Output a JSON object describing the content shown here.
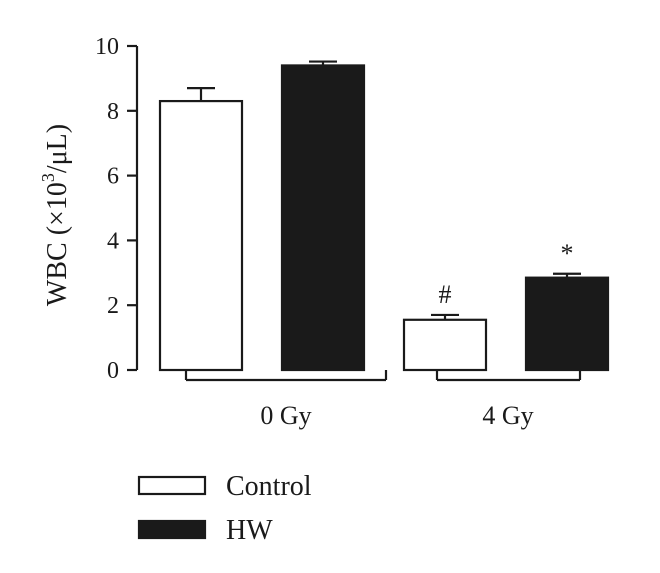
{
  "chart_data": {
    "type": "bar",
    "categories": [
      "0 Gy",
      "4 Gy"
    ],
    "series": [
      {
        "name": "Control",
        "values": [
          8.3,
          1.55
        ],
        "errors": [
          0.4,
          0.15
        ],
        "color": "#ffffff"
      },
      {
        "name": "HW",
        "values": [
          9.4,
          2.85
        ],
        "errors": [
          0.12,
          0.12
        ],
        "color": "#1a1a1a"
      }
    ],
    "annotations": [
      {
        "category": "4 Gy",
        "series": "Control",
        "text": "#"
      },
      {
        "category": "4 Gy",
        "series": "HW",
        "text": "*"
      }
    ],
    "ylabel_main": "WBC (×10",
    "ylabel_sup": "3",
    "ylabel_tail": "/μL)",
    "ylim": [
      0,
      10
    ],
    "yticks": [
      "0",
      "2",
      "4",
      "6",
      "8",
      "10"
    ],
    "legend": {
      "placement": "bottom-left"
    }
  }
}
